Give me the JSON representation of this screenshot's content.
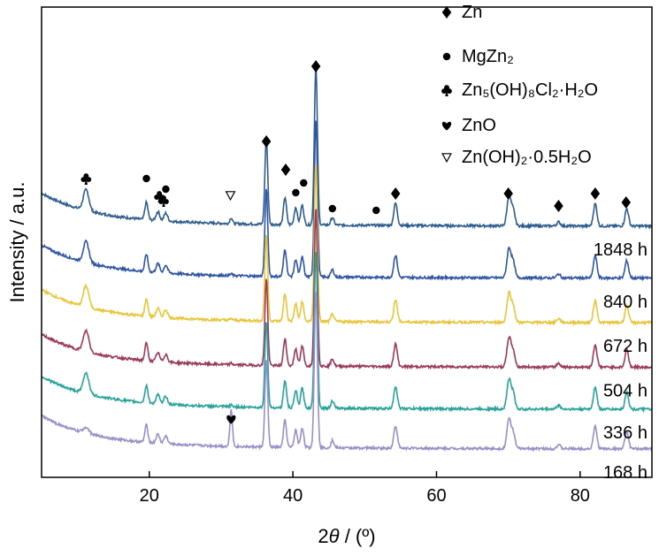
{
  "chart_data": {
    "type": "line",
    "xlabel_prefix": "2",
    "xlabel_symbol": "θ",
    "xlabel_suffix": " / (º)",
    "ylabel": "Intensity / a.u.",
    "xlim": [
      5,
      90
    ],
    "xticks": [
      20,
      40,
      60,
      80
    ],
    "y_ticks_shown": false,
    "legend_placement": "top-right",
    "legend": [
      {
        "symbol": "diamond",
        "label": "Zn"
      },
      {
        "symbol": "circle",
        "label": "MgZn₂"
      },
      {
        "symbol": "club",
        "label": "Zn₅(OH)₈Cl₂·H₂O"
      },
      {
        "symbol": "heart",
        "label": "ZnO"
      },
      {
        "symbol": "triangle-down-open",
        "label": "Zn(OH)₂·0.5H₂O"
      }
    ],
    "series": [
      {
        "name": "1848 h",
        "color": "#2e5d8e",
        "offset": 4.5
      },
      {
        "name": "840 h",
        "color": "#2f55a4",
        "offset": 3.45
      },
      {
        "name": "672 h",
        "color": "#e8c53a",
        "offset": 2.55
      },
      {
        "name": "504 h",
        "color": "#9b3a5a",
        "offset": 1.65
      },
      {
        "name": "336 h",
        "color": "#27a39a",
        "offset": 0.8
      },
      {
        "name": "168 h",
        "color": "#9b8fc9",
        "offset": 0.0
      }
    ],
    "peaks": [
      {
        "x": 11.2,
        "h": 0.42,
        "w": 0.55
      },
      {
        "x": 19.6,
        "h": 0.35,
        "w": 0.3
      },
      {
        "x": 21.2,
        "h": 0.18,
        "w": 0.35
      },
      {
        "x": 22.3,
        "h": 0.16,
        "w": 0.35
      },
      {
        "x": 31.4,
        "h": 0.12,
        "w": 0.25
      },
      {
        "x": 36.3,
        "h": 1.75,
        "w": 0.28
      },
      {
        "x": 38.9,
        "h": 0.55,
        "w": 0.3
      },
      {
        "x": 40.4,
        "h": 0.35,
        "w": 0.3
      },
      {
        "x": 41.3,
        "h": 0.4,
        "w": 0.3
      },
      {
        "x": 43.2,
        "h": 3.2,
        "w": 0.3
      },
      {
        "x": 45.5,
        "h": 0.15,
        "w": 0.3
      },
      {
        "x": 54.3,
        "h": 0.45,
        "w": 0.35
      },
      {
        "x": 70.1,
        "h": 0.6,
        "w": 0.4
      },
      {
        "x": 70.7,
        "h": 0.3,
        "w": 0.35
      },
      {
        "x": 77.0,
        "h": 0.08,
        "w": 0.35
      },
      {
        "x": 82.1,
        "h": 0.45,
        "w": 0.35
      },
      {
        "x": 86.5,
        "h": 0.35,
        "w": 0.35
      }
    ],
    "phase_markers": [
      {
        "symbol": "club",
        "x": 11.2
      },
      {
        "symbol": "circle",
        "x": 19.6
      },
      {
        "symbol": "club",
        "x": 21.4
      },
      {
        "symbol": "circle",
        "x": 22.3
      },
      {
        "symbol": "club",
        "x": 22.0
      },
      {
        "symbol": "triangle-down-open",
        "x": 31.3
      },
      {
        "symbol": "diamond",
        "x": 36.3
      },
      {
        "symbol": "diamond",
        "x": 39.0
      },
      {
        "symbol": "circle",
        "x": 40.4
      },
      {
        "symbol": "circle",
        "x": 41.5
      },
      {
        "symbol": "diamond",
        "x": 43.2
      },
      {
        "symbol": "circle",
        "x": 45.5
      },
      {
        "symbol": "circle",
        "x": 51.6
      },
      {
        "symbol": "diamond",
        "x": 54.3
      },
      {
        "symbol": "diamond",
        "x": 70.0
      },
      {
        "symbol": "diamond",
        "x": 77.0
      },
      {
        "symbol": "diamond",
        "x": 82.1
      },
      {
        "symbol": "diamond",
        "x": 86.4
      },
      {
        "symbol": "heart",
        "x": 31.4
      }
    ]
  }
}
